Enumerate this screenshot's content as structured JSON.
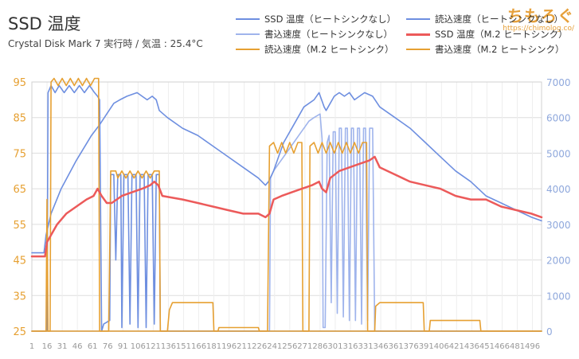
{
  "header": {
    "title": "SSD 温度",
    "subtitle": "Crystal Disk Mark 7 実行時 / 気温 : 25.4°C"
  },
  "watermark": {
    "main": "ちもろぐ",
    "url": "https://chimolog.co/"
  },
  "colors": {
    "blue_dark": "#6e8fe0",
    "blue_light": "#9fb4ec",
    "red": "#ec5a5a",
    "orange": "#e6a032",
    "orange_light": "#f2c070",
    "left_axis": "#e6a032",
    "right_axis": "#8fa8dc",
    "grid": "#dddddd"
  },
  "chart_data": {
    "type": "line",
    "legend_position": "top-right",
    "y_left": {
      "min": 25,
      "max": 95,
      "ticks": [
        25,
        35,
        45,
        55,
        65,
        75,
        85,
        95
      ]
    },
    "y_right": {
      "min": 0,
      "max": 7000,
      "ticks": [
        0,
        1000,
        2000,
        3000,
        4000,
        5000,
        6000,
        7000
      ]
    },
    "x": {
      "min": 1,
      "max": 505,
      "tick_labels": [
        "1",
        "16",
        "31",
        "46",
        "61",
        "76",
        "91",
        "106",
        "121",
        "136",
        "151",
        "166",
        "181",
        "196",
        "211",
        "226",
        "241",
        "256",
        "271",
        "286",
        "301",
        "316",
        "331",
        "346",
        "361",
        "376",
        "391",
        "406",
        "421",
        "436",
        "451",
        "466",
        "481",
        "496"
      ]
    },
    "grid": true,
    "series": [
      {
        "name": "SSD 温度（ヒートシンクなし）",
        "axis": "left",
        "color_key": "blue_dark",
        "points": [
          [
            1,
            47
          ],
          [
            13,
            47
          ],
          [
            15,
            52
          ],
          [
            20,
            58
          ],
          [
            30,
            65
          ],
          [
            45,
            73
          ],
          [
            60,
            80
          ],
          [
            68,
            83
          ],
          [
            75,
            86
          ],
          [
            82,
            89
          ],
          [
            88,
            90
          ],
          [
            95,
            91
          ],
          [
            105,
            92
          ],
          [
            110,
            91
          ],
          [
            115,
            90
          ],
          [
            120,
            91
          ],
          [
            124,
            90
          ],
          [
            127,
            87
          ],
          [
            135,
            85
          ],
          [
            150,
            82
          ],
          [
            165,
            80
          ],
          [
            180,
            77
          ],
          [
            195,
            74
          ],
          [
            210,
            71
          ],
          [
            225,
            68
          ],
          [
            232,
            66
          ],
          [
            235,
            67
          ],
          [
            240,
            70
          ],
          [
            245,
            74
          ],
          [
            250,
            78
          ],
          [
            260,
            83
          ],
          [
            270,
            88
          ],
          [
            280,
            90
          ],
          [
            285,
            92
          ],
          [
            290,
            88
          ],
          [
            292,
            87
          ],
          [
            296,
            89
          ],
          [
            300,
            91
          ],
          [
            305,
            92
          ],
          [
            310,
            91
          ],
          [
            315,
            92
          ],
          [
            320,
            90
          ],
          [
            325,
            91
          ],
          [
            330,
            92
          ],
          [
            338,
            91
          ],
          [
            345,
            88
          ],
          [
            360,
            85
          ],
          [
            375,
            82
          ],
          [
            390,
            78
          ],
          [
            405,
            74
          ],
          [
            420,
            70
          ],
          [
            435,
            67
          ],
          [
            450,
            63
          ],
          [
            465,
            61
          ],
          [
            480,
            59
          ],
          [
            495,
            57
          ],
          [
            505,
            56
          ]
        ]
      },
      {
        "name": "読込速度（ヒートシンクなし）",
        "axis": "right",
        "color_key": "blue_dark",
        "points": [
          [
            1,
            0
          ],
          [
            16,
            0
          ],
          [
            17,
            6700
          ],
          [
            20,
            6900
          ],
          [
            24,
            6700
          ],
          [
            28,
            6900
          ],
          [
            33,
            6700
          ],
          [
            38,
            6900
          ],
          [
            43,
            6700
          ],
          [
            48,
            6900
          ],
          [
            53,
            6700
          ],
          [
            58,
            6900
          ],
          [
            63,
            6700
          ],
          [
            66,
            6600
          ],
          [
            68,
            6500
          ],
          [
            70,
            0
          ],
          [
            72,
            200
          ],
          [
            78,
            300
          ],
          [
            79,
            4400
          ],
          [
            82,
            4400
          ],
          [
            84,
            2000
          ],
          [
            86,
            4400
          ],
          [
            89,
            4400
          ],
          [
            90,
            100
          ],
          [
            92,
            4400
          ],
          [
            96,
            4400
          ],
          [
            98,
            200
          ],
          [
            100,
            4400
          ],
          [
            104,
            4400
          ],
          [
            106,
            100
          ],
          [
            108,
            4400
          ],
          [
            112,
            4400
          ],
          [
            114,
            100
          ],
          [
            116,
            4400
          ],
          [
            120,
            4400
          ],
          [
            122,
            200
          ],
          [
            124,
            4400
          ],
          [
            127,
            4400
          ],
          [
            128,
            0
          ],
          [
            505,
            0
          ]
        ]
      },
      {
        "name": "書込速度（ヒートシンクなし）",
        "axis": "right",
        "color_key": "blue_light",
        "points": [
          [
            1,
            0
          ],
          [
            236,
            0
          ],
          [
            237,
            4300
          ],
          [
            240,
            4500
          ],
          [
            245,
            4700
          ],
          [
            250,
            4900
          ],
          [
            255,
            5100
          ],
          [
            260,
            5300
          ],
          [
            265,
            5500
          ],
          [
            270,
            5700
          ],
          [
            275,
            5900
          ],
          [
            280,
            6000
          ],
          [
            286,
            6100
          ],
          [
            288,
            5400
          ],
          [
            289,
            100
          ],
          [
            291,
            100
          ],
          [
            293,
            5300
          ],
          [
            295,
            5500
          ],
          [
            297,
            800
          ],
          [
            299,
            5600
          ],
          [
            301,
            5600
          ],
          [
            303,
            500
          ],
          [
            305,
            5700
          ],
          [
            307,
            5700
          ],
          [
            309,
            400
          ],
          [
            311,
            5700
          ],
          [
            313,
            5700
          ],
          [
            315,
            300
          ],
          [
            317,
            5700
          ],
          [
            319,
            5700
          ],
          [
            321,
            300
          ],
          [
            323,
            5700
          ],
          [
            325,
            5700
          ],
          [
            327,
            200
          ],
          [
            329,
            5700
          ],
          [
            331,
            5700
          ],
          [
            333,
            300
          ],
          [
            335,
            5700
          ],
          [
            338,
            5700
          ],
          [
            340,
            0
          ],
          [
            505,
            0
          ]
        ]
      },
      {
        "name": "SSD 温度（M.2 ヒートシンク）",
        "axis": "left",
        "color_key": "red",
        "points": [
          [
            1,
            46
          ],
          [
            14,
            46
          ],
          [
            16,
            50
          ],
          [
            20,
            52
          ],
          [
            26,
            55
          ],
          [
            35,
            58
          ],
          [
            45,
            60
          ],
          [
            55,
            62
          ],
          [
            62,
            63
          ],
          [
            66,
            65
          ],
          [
            70,
            63
          ],
          [
            75,
            61
          ],
          [
            80,
            61
          ],
          [
            90,
            63
          ],
          [
            100,
            64
          ],
          [
            110,
            65
          ],
          [
            118,
            66
          ],
          [
            122,
            67
          ],
          [
            126,
            66
          ],
          [
            130,
            63
          ],
          [
            150,
            62
          ],
          [
            165,
            61
          ],
          [
            180,
            60
          ],
          [
            195,
            59
          ],
          [
            210,
            58
          ],
          [
            225,
            58
          ],
          [
            232,
            57
          ],
          [
            236,
            58
          ],
          [
            240,
            62
          ],
          [
            248,
            63
          ],
          [
            258,
            64
          ],
          [
            268,
            65
          ],
          [
            278,
            66
          ],
          [
            285,
            67
          ],
          [
            288,
            65
          ],
          [
            292,
            64
          ],
          [
            296,
            68
          ],
          [
            305,
            70
          ],
          [
            315,
            71
          ],
          [
            325,
            72
          ],
          [
            335,
            73
          ],
          [
            340,
            74
          ],
          [
            345,
            71
          ],
          [
            360,
            69
          ],
          [
            375,
            67
          ],
          [
            390,
            66
          ],
          [
            405,
            65
          ],
          [
            420,
            63
          ],
          [
            435,
            62
          ],
          [
            450,
            62
          ],
          [
            465,
            60
          ],
          [
            480,
            59
          ],
          [
            495,
            58
          ],
          [
            505,
            57
          ]
        ]
      },
      {
        "name": "読込速度（M.2 ヒートシンク）",
        "axis": "right",
        "color_key": "orange",
        "points": [
          [
            1,
            0
          ],
          [
            15,
            0
          ],
          [
            16,
            3700
          ],
          [
            17,
            0
          ],
          [
            19,
            0
          ],
          [
            20,
            7000
          ],
          [
            23,
            7100
          ],
          [
            27,
            6900
          ],
          [
            31,
            7100
          ],
          [
            35,
            6900
          ],
          [
            39,
            7100
          ],
          [
            43,
            6900
          ],
          [
            47,
            7100
          ],
          [
            51,
            6900
          ],
          [
            55,
            7100
          ],
          [
            59,
            6900
          ],
          [
            63,
            7100
          ],
          [
            67,
            7100
          ],
          [
            68,
            0
          ],
          [
            77,
            0
          ],
          [
            79,
            4500
          ],
          [
            84,
            4500
          ],
          [
            86,
            4300
          ],
          [
            90,
            4500
          ],
          [
            94,
            4300
          ],
          [
            98,
            4500
          ],
          [
            102,
            4300
          ],
          [
            106,
            4500
          ],
          [
            110,
            4300
          ],
          [
            114,
            4500
          ],
          [
            118,
            4300
          ],
          [
            122,
            4500
          ],
          [
            127,
            4500
          ],
          [
            128,
            0
          ],
          [
            135,
            0
          ],
          [
            137,
            600
          ],
          [
            140,
            800
          ],
          [
            180,
            800
          ],
          [
            181,
            0
          ],
          [
            185,
            0
          ],
          [
            186,
            100
          ],
          [
            225,
            100
          ],
          [
            226,
            0
          ],
          [
            505,
            0
          ]
        ]
      },
      {
        "name": "書込速度（M.2 ヒートシンク）",
        "axis": "right",
        "color_key": "orange",
        "points": [
          [
            1,
            0
          ],
          [
            234,
            0
          ],
          [
            236,
            5200
          ],
          [
            240,
            5300
          ],
          [
            244,
            5000
          ],
          [
            248,
            5300
          ],
          [
            252,
            5000
          ],
          [
            256,
            5300
          ],
          [
            260,
            5000
          ],
          [
            264,
            5300
          ],
          [
            268,
            5300
          ],
          [
            269,
            0
          ],
          [
            275,
            0
          ],
          [
            276,
            5200
          ],
          [
            280,
            5300
          ],
          [
            284,
            5000
          ],
          [
            288,
            5300
          ],
          [
            292,
            5000
          ],
          [
            296,
            5300
          ],
          [
            300,
            5000
          ],
          [
            304,
            5300
          ],
          [
            308,
            5000
          ],
          [
            312,
            5300
          ],
          [
            316,
            5000
          ],
          [
            320,
            5300
          ],
          [
            324,
            5000
          ],
          [
            328,
            5300
          ],
          [
            332,
            5300
          ],
          [
            333,
            0
          ],
          [
            340,
            0
          ],
          [
            341,
            700
          ],
          [
            345,
            800
          ],
          [
            360,
            800
          ],
          [
            380,
            800
          ],
          [
            388,
            800
          ],
          [
            389,
            0
          ],
          [
            394,
            0
          ],
          [
            395,
            300
          ],
          [
            420,
            300
          ],
          [
            444,
            300
          ],
          [
            445,
            0
          ],
          [
            505,
            0
          ]
        ]
      }
    ]
  }
}
